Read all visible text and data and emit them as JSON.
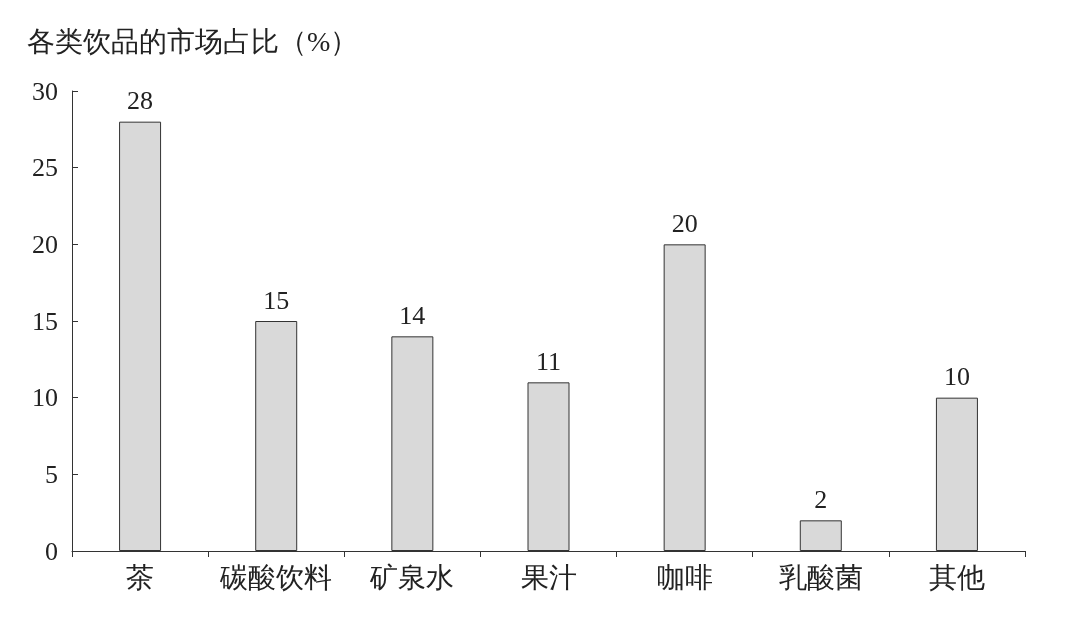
{
  "chart_data": {
    "type": "bar",
    "ylabel": "各类饮品的市场占比（%）",
    "categories": [
      "茶",
      "碳酸饮料",
      "矿泉水",
      "果汁",
      "咖啡",
      "乳酸菌",
      "其他"
    ],
    "values": [
      28,
      15,
      14,
      11,
      20,
      2,
      10
    ],
    "color": "#d9d9d9",
    "ylim": [
      0,
      30
    ],
    "yticks": [
      0,
      5,
      10,
      15,
      20,
      25,
      30
    ],
    "data_labels": true,
    "grid": false
  }
}
